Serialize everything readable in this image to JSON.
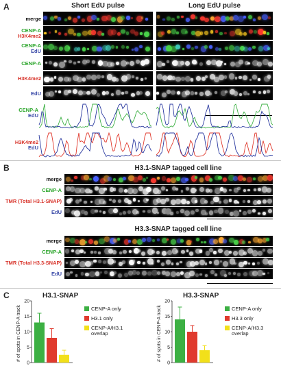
{
  "panels": {
    "A": {
      "letter": "A",
      "col_titles": [
        "Short EdU pulse",
        "Long EdU pulse"
      ],
      "rows": [
        {
          "lines": [
            {
              "text": "merge",
              "color": "k"
            }
          ]
        },
        {
          "lines": [
            {
              "text": "CENP-A",
              "color": "g"
            },
            {
              "text": "H3K4me2",
              "color": "r"
            }
          ]
        },
        {
          "lines": [
            {
              "text": "CENP-A",
              "color": "g"
            },
            {
              "text": "EdU",
              "color": "b"
            }
          ]
        },
        {
          "lines": [
            {
              "text": "CENP-A",
              "color": "g"
            }
          ]
        },
        {
          "lines": [
            {
              "text": "H3K4me2",
              "color": "r"
            }
          ]
        },
        {
          "lines": [
            {
              "text": "EdU",
              "color": "b"
            }
          ]
        }
      ],
      "profile_labels": [
        {
          "lines": [
            {
              "text": "CENP-A",
              "color": "g"
            },
            {
              "text": "EdU",
              "color": "b"
            }
          ]
        },
        {
          "lines": [
            {
              "text": "H3K4me2",
              "color": "r"
            },
            {
              "text": "EdU",
              "color": "b"
            }
          ]
        }
      ]
    },
    "B": {
      "letter": "B",
      "groups": [
        {
          "title": "H3.1-SNAP tagged cell line",
          "rows": [
            {
              "text": "merge",
              "color": "k"
            },
            {
              "text": "CENP-A",
              "color": "g"
            },
            {
              "text": "TMR (Total H3.1-SNAP)",
              "color": "r"
            },
            {
              "text": "EdU",
              "color": "b"
            }
          ]
        },
        {
          "title": "H3.3-SNAP tagged cell line",
          "rows": [
            {
              "text": "merge",
              "color": "k"
            },
            {
              "text": "CENP-A",
              "color": "g"
            },
            {
              "text": "TMR (Total H3.3-SNAP)",
              "color": "r"
            },
            {
              "text": "EdU",
              "color": "b"
            }
          ]
        }
      ]
    },
    "C": {
      "letter": "C"
    }
  },
  "chart_data": [
    {
      "type": "bar",
      "title": "H3.1-SNAP",
      "ylabel": "# of spots in CENP-A track",
      "ylim": [
        0,
        20
      ],
      "yticks": [
        "0",
        "5",
        "10",
        "15",
        "20"
      ],
      "categories": [
        "CENP-A only",
        "H3.1 only",
        "CENP-A/H3.1 overlap"
      ],
      "values": [
        13,
        8,
        2.5
      ],
      "errors": [
        3,
        3,
        1.5
      ],
      "colors": [
        "#3cb043",
        "#e03a2e",
        "#f2e01a"
      ],
      "legend": [
        "CENP-A only",
        "H3.1 only",
        "CENP-A/H3.1\noverlap"
      ]
    },
    {
      "type": "bar",
      "title": "H3.3-SNAP",
      "ylabel": "# of spots in CENP-A track",
      "ylim": [
        0,
        20
      ],
      "yticks": [
        "0",
        "5",
        "10",
        "15",
        "20"
      ],
      "categories": [
        "CENP-A only",
        "H3.3 only",
        "CENP-A/H3.3 overlap"
      ],
      "values": [
        14,
        10,
        4
      ],
      "errors": [
        4,
        2,
        1.5
      ],
      "colors": [
        "#3cb043",
        "#e03a2e",
        "#f2e01a"
      ],
      "legend": [
        "CENP-A only",
        "H3.3 only",
        "CENP-A/H3.3\noverlap"
      ]
    }
  ]
}
